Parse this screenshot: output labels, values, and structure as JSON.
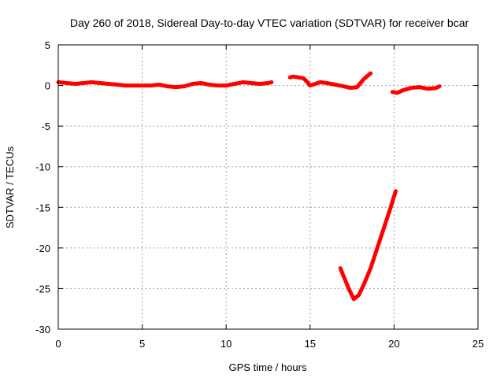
{
  "chart_data": {
    "type": "line",
    "title": "Day 260 of 2018, Sidereal Day-to-day VTEC variation (SDTVAR) for receiver bcar",
    "xlabel": "GPS time / hours",
    "ylabel": "SDTVAR / TECUs",
    "xlim": [
      0,
      25
    ],
    "ylim": [
      -30,
      5
    ],
    "xticks": [
      0,
      5,
      10,
      15,
      20,
      25
    ],
    "yticks": [
      5,
      0,
      -5,
      -10,
      -15,
      -20,
      -25,
      -30
    ],
    "grid": true,
    "series": [
      {
        "name": "SDTVAR segment 1",
        "color": "#ff0000",
        "x": [
          0.0,
          0.5,
          1.0,
          1.5,
          2.0,
          2.5,
          3.0,
          3.5,
          4.0,
          4.5,
          5.0,
          5.5,
          6.0,
          6.5,
          7.0,
          7.5,
          8.0,
          8.5,
          9.0,
          9.5,
          10.0,
          10.5,
          11.0,
          11.5,
          12.0,
          12.5,
          12.7
        ],
        "y": [
          0.4,
          0.3,
          0.2,
          0.3,
          0.4,
          0.3,
          0.2,
          0.1,
          0.0,
          0.0,
          0.0,
          0.0,
          0.1,
          -0.1,
          -0.2,
          -0.1,
          0.2,
          0.3,
          0.1,
          0.0,
          0.0,
          0.2,
          0.4,
          0.3,
          0.2,
          0.3,
          0.4
        ]
      },
      {
        "name": "SDTVAR segment 2",
        "color": "#ff0000",
        "x": [
          13.8,
          14.0,
          14.3,
          14.6,
          14.8,
          15.0,
          15.3,
          15.6,
          16.0,
          16.5,
          17.0,
          17.4,
          17.8,
          18.2,
          18.6
        ],
        "y": [
          1.0,
          1.1,
          1.0,
          0.9,
          0.5,
          0.0,
          0.2,
          0.4,
          0.3,
          0.1,
          -0.1,
          -0.3,
          -0.2,
          0.8,
          1.5
        ]
      },
      {
        "name": "SDTVAR segment 3",
        "color": "#ff0000",
        "x": [
          16.8,
          17.0,
          17.3,
          17.6,
          17.9,
          18.2,
          18.6,
          19.0,
          19.4,
          19.8,
          20.1
        ],
        "y": [
          -22.5,
          -23.5,
          -25.0,
          -26.3,
          -25.8,
          -24.5,
          -22.5,
          -20.0,
          -17.5,
          -15.0,
          -13.0
        ]
      },
      {
        "name": "SDTVAR segment 4",
        "color": "#ff0000",
        "x": [
          19.9,
          20.2,
          20.5,
          21.0,
          21.5,
          22.0,
          22.5,
          22.7
        ],
        "y": [
          -0.8,
          -0.9,
          -0.6,
          -0.3,
          -0.2,
          -0.4,
          -0.3,
          -0.1
        ]
      }
    ]
  }
}
